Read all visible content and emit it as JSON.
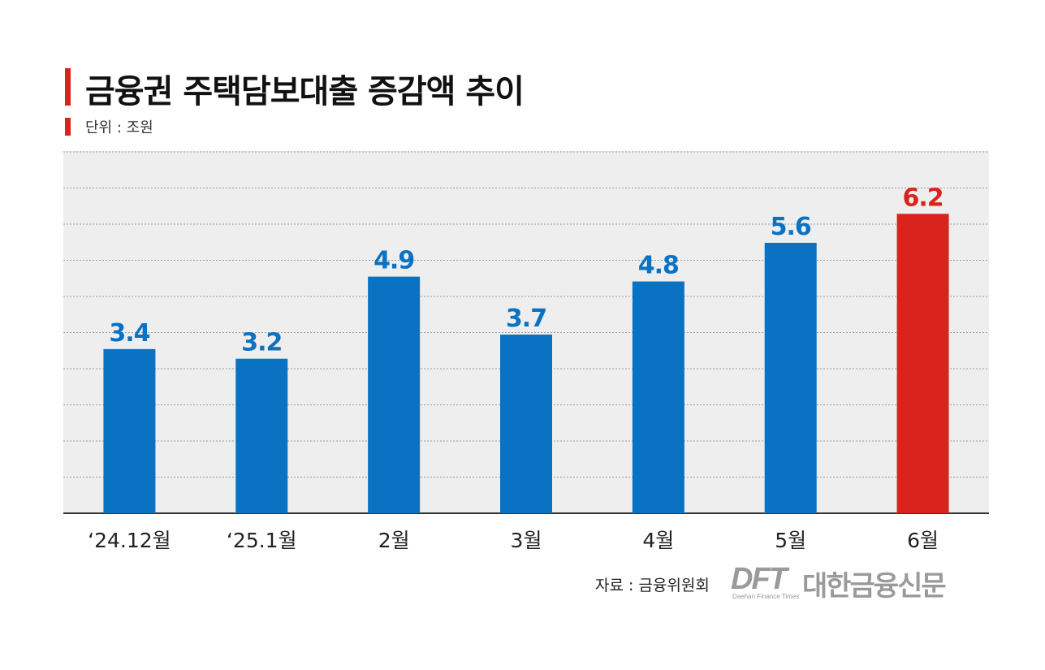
{
  "title": "금융권 주택담보대출 증감액 추이",
  "unit_label": "단위 : 조원",
  "source": "자료 : 금융위원회",
  "logo": {
    "mark": "DFT",
    "name_kr": "대한금융신문",
    "name_en": "Daehan Finance Times"
  },
  "colors": {
    "bar": "#0a72c2",
    "highlight": "#d9231d",
    "plot_background": "#eeeeee",
    "grid": "#9a9a9a"
  },
  "chart_data": {
    "type": "bar",
    "title": "금융권 주택담보대출 증감액 추이",
    "categories": [
      "‘24.12월",
      "‘25.1월",
      "2월",
      "3월",
      "4월",
      "5월",
      "6월"
    ],
    "values": [
      3.4,
      3.2,
      4.9,
      3.7,
      4.8,
      5.6,
      6.2
    ],
    "data_labels": [
      "3.4",
      "3.2",
      "4.9",
      "3.7",
      "4.8",
      "5.6",
      "6.2"
    ],
    "highlight_index": 6,
    "ylabel": "",
    "xlabel": "",
    "unit": "조원",
    "ylim": [
      0,
      7.5
    ],
    "grid": true,
    "legend": "none"
  }
}
